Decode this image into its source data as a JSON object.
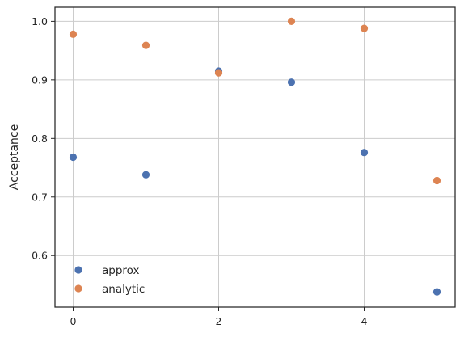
{
  "chart_data": {
    "type": "scatter",
    "title": "",
    "xlabel": "",
    "ylabel": "Acceptance",
    "xlim": [
      -0.25,
      5.25
    ],
    "ylim": [
      0.512,
      1.024
    ],
    "xticks": [
      0,
      2,
      4
    ],
    "yticks": [
      0.6,
      0.7,
      0.8,
      0.9,
      1.0
    ],
    "grid": true,
    "legend_position": "lower-left",
    "series": [
      {
        "name": "approx",
        "color": "#4c72b0",
        "x": [
          0,
          1,
          2,
          3,
          4,
          5
        ],
        "y": [
          0.768,
          0.738,
          0.915,
          0.896,
          0.776,
          0.538
        ]
      },
      {
        "name": "analytic",
        "color": "#dd8452",
        "x": [
          0,
          1,
          2,
          3,
          4,
          5
        ],
        "y": [
          0.978,
          0.959,
          0.912,
          1.0,
          0.988,
          0.728
        ]
      }
    ]
  }
}
